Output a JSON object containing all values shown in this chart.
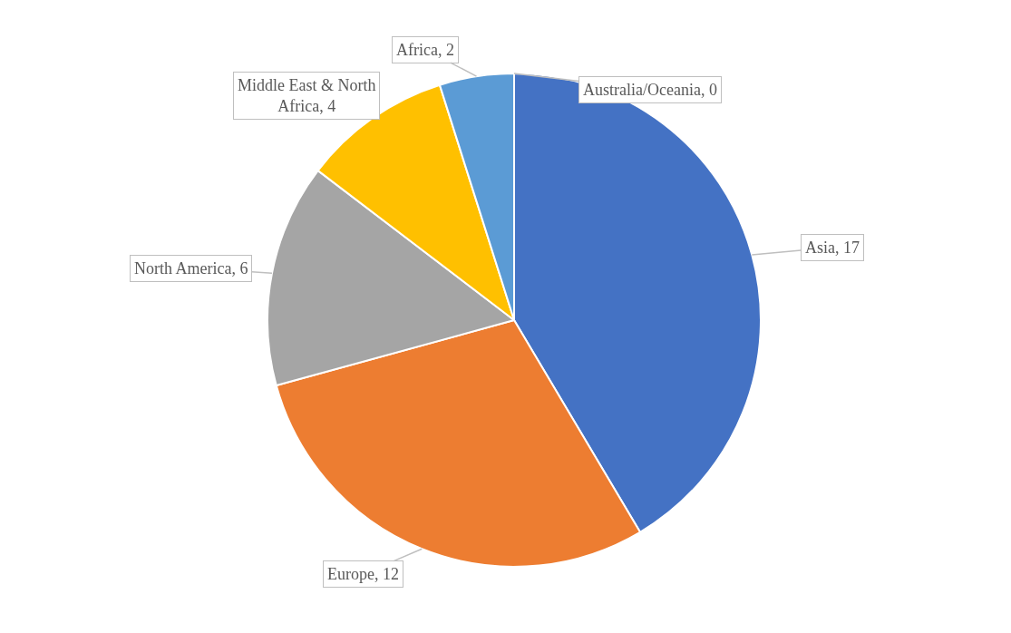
{
  "chart_data": {
    "type": "pie",
    "categories": [
      "Asia, 17",
      "Europe, 12",
      "North America, 6",
      "Middle East & North Africa, 4",
      "Africa, 2",
      "Australia/Oceania, 0"
    ],
    "values": [
      17,
      12,
      6,
      4,
      2,
      0
    ],
    "colors": [
      "#4472c4",
      "#ed7d31",
      "#a5a5a5",
      "#ffc000",
      "#5b9bd5",
      "#70ad47"
    ],
    "legend": false
  }
}
